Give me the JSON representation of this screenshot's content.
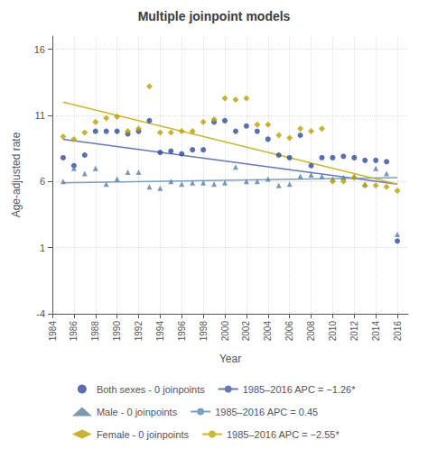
{
  "chart_data": {
    "type": "scatter",
    "title": "Multiple joinpoint models",
    "xlabel": "Year",
    "ylabel": "Age-adjusted rate",
    "xlim": [
      1984,
      2017
    ],
    "ylim": [
      -4,
      17
    ],
    "xticks": [
      1984,
      1986,
      1988,
      1990,
      1992,
      1994,
      1996,
      1998,
      2000,
      2002,
      2004,
      2006,
      2008,
      2010,
      2012,
      2014,
      2016
    ],
    "yticks": [
      -4,
      1,
      6,
      11,
      16
    ],
    "grid": true,
    "legend": "bottom",
    "series": [
      {
        "name": "Both sexes - 0 joinpoints",
        "type": "scatter",
        "marker": "circle",
        "color": "#2e4a9e",
        "x": [
          1985,
          1986,
          1987,
          1988,
          1989,
          1990,
          1991,
          1992,
          1993,
          1994,
          1995,
          1996,
          1997,
          1998,
          1999,
          2000,
          2001,
          2002,
          2003,
          2004,
          2005,
          2006,
          2007,
          2008,
          2009,
          2010,
          2011,
          2012,
          2013,
          2014,
          2015,
          2016
        ],
        "values": [
          7.8,
          7.2,
          8.0,
          9.8,
          9.8,
          9.8,
          9.6,
          9.8,
          10.6,
          8.2,
          8.3,
          8.1,
          8.4,
          8.4,
          10.5,
          10.6,
          9.8,
          10.2,
          9.8,
          9.2,
          8.0,
          7.8,
          9.5,
          7.2,
          7.8,
          7.8,
          7.9,
          7.8,
          7.6,
          7.6,
          7.5,
          1.5
        ]
      },
      {
        "name": "1985–2016 APC = −1.26*",
        "type": "line",
        "line_style": "solid",
        "color": "#6678b8",
        "x": [
          1985,
          2016
        ],
        "values": [
          9.2,
          5.8
        ]
      },
      {
        "name": "Male - 0 joinpoints",
        "type": "scatter",
        "marker": "triangle",
        "color": "#5b7f9e",
        "x": [
          1985,
          1986,
          1987,
          1988,
          1989,
          1990,
          1991,
          1992,
          1993,
          1994,
          1995,
          1996,
          1997,
          1998,
          1999,
          2000,
          2001,
          2002,
          2003,
          2004,
          2005,
          2006,
          2007,
          2008,
          2009,
          2010,
          2011,
          2012,
          2013,
          2014,
          2015,
          2016
        ],
        "values": [
          6.0,
          7.0,
          6.6,
          7.0,
          5.8,
          6.2,
          6.7,
          6.7,
          5.6,
          5.5,
          6.0,
          5.8,
          5.9,
          5.9,
          5.8,
          5.9,
          7.1,
          6.0,
          6.0,
          6.2,
          5.7,
          5.8,
          6.4,
          6.5,
          6.4,
          6.2,
          6.3,
          6.4,
          5.8,
          7.0,
          6.6,
          2.0
        ]
      },
      {
        "name": "1985–2016 APC = 0.45",
        "type": "line",
        "line_style": "solid",
        "color": "#7da0c0",
        "x": [
          1985,
          2016
        ],
        "values": [
          5.9,
          6.3
        ]
      },
      {
        "name": "Female - 0 joinpoints",
        "type": "scatter",
        "marker": "diamond",
        "color": "#b8a000",
        "x": [
          1985,
          1986,
          1987,
          1988,
          1989,
          1990,
          1991,
          1992,
          1993,
          1994,
          1995,
          1996,
          1997,
          1998,
          1999,
          2000,
          2001,
          2002,
          2003,
          2004,
          2005,
          2006,
          2007,
          2008,
          2009,
          2010,
          2011,
          2012,
          2013,
          2014,
          2015,
          2016
        ],
        "values": [
          9.4,
          9.2,
          9.7,
          10.5,
          10.8,
          10.9,
          9.8,
          10.0,
          13.2,
          9.7,
          9.7,
          9.8,
          9.8,
          10.5,
          10.7,
          12.3,
          12.2,
          12.3,
          10.3,
          10.3,
          9.5,
          9.3,
          10.0,
          9.8,
          10.0,
          6.0,
          6.0,
          6.3,
          5.7,
          5.7,
          5.6,
          5.3
        ]
      },
      {
        "name": "1985–2016 APC = −2.55*",
        "type": "line",
        "line_style": "solid",
        "color": "#c8b832",
        "x": [
          1985,
          2016
        ],
        "values": [
          12.0,
          5.8
        ]
      }
    ]
  }
}
